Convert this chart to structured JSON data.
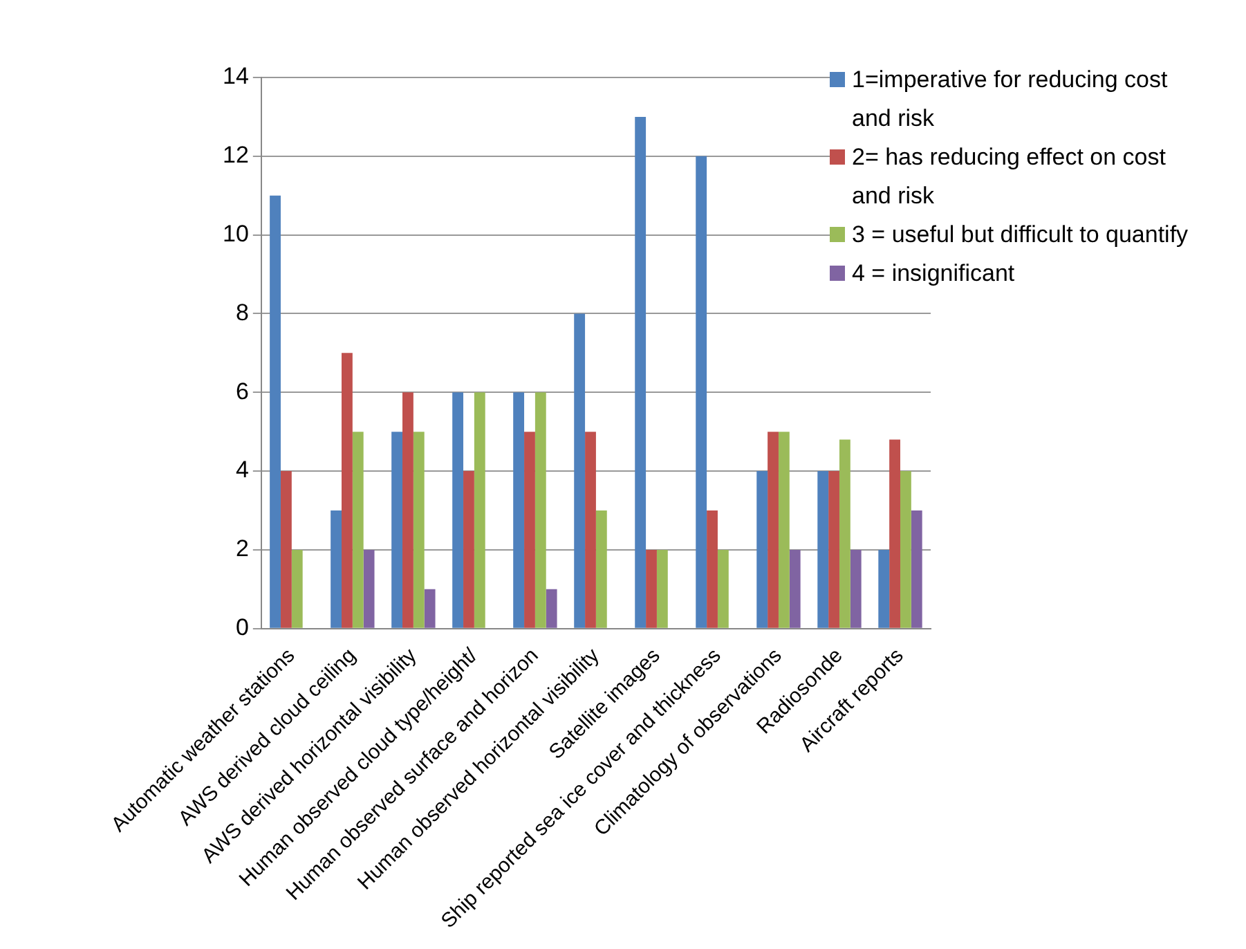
{
  "chart_data": {
    "type": "bar",
    "categories": [
      "Automatic weather stations",
      "AWS derived cloud ceiling",
      "AWS derived horizontal visibility",
      "Human observed cloud type/height/",
      "Human observed surface and horizon",
      "Human observed horizontal visibility",
      "Satellite images",
      "Ship reported sea ice cover and thickness",
      "Climatology of observations",
      "Radiosonde",
      "Aircraft reports"
    ],
    "series": [
      {
        "name": "1=imperative for reducing cost and risk",
        "color": "#4f81bd",
        "values": [
          11,
          3,
          5,
          6,
          6,
          8,
          13,
          12,
          4,
          4,
          2
        ]
      },
      {
        "name": "2= has reducing effect on cost and risk",
        "color": "#c0504d",
        "values": [
          4,
          7,
          6,
          4,
          5,
          5,
          2,
          3,
          5,
          4,
          4.8
        ]
      },
      {
        "name": "3 = useful but difficult to quantify",
        "color": "#9bbb59",
        "values": [
          2,
          5,
          5,
          6,
          6,
          3,
          2,
          2,
          5,
          4.8,
          4
        ]
      },
      {
        "name": "4 = insignificant",
        "color": "#8064a2",
        "values": [
          0,
          2,
          1,
          0,
          1,
          0,
          0,
          0,
          2,
          2,
          3
        ]
      }
    ],
    "ylim": [
      0,
      14
    ],
    "yticks": [
      0,
      2,
      4,
      6,
      8,
      10,
      12,
      14
    ],
    "grid": "y",
    "legend": "top right"
  }
}
